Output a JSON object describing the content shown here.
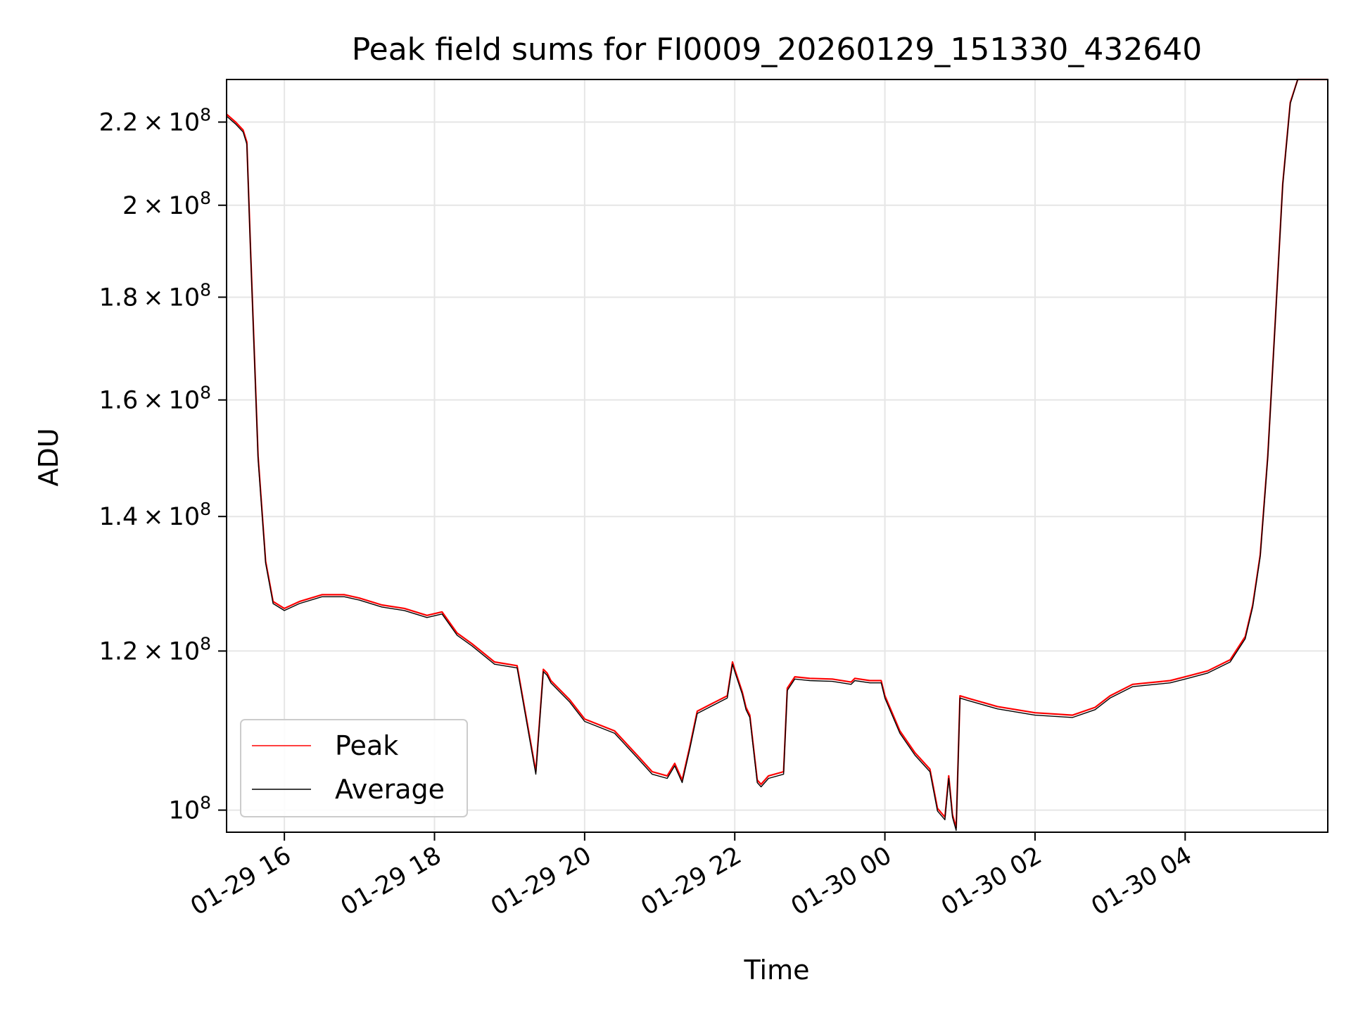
{
  "chart_data": {
    "type": "line",
    "title": "Peak field sums for FI0009_20260129_151330_432640",
    "xlabel": "Time",
    "ylabel": "ADU",
    "yscale": "log",
    "ylim": [
      97500000,
      231000000
    ],
    "x_ticks": [
      "01-29 16",
      "01-29 18",
      "01-29 20",
      "01-29 22",
      "01-30 00",
      "01-30 02",
      "01-30 04"
    ],
    "x_tick_hours": [
      16,
      18,
      20,
      22,
      24,
      26,
      28
    ],
    "xlim_hours": [
      15.23,
      29.9
    ],
    "y_ticks": [
      {
        "mantissa": "2.2",
        "exp": "8",
        "value": 220000000
      },
      {
        "mantissa": "2",
        "exp": "8",
        "value": 200000000
      },
      {
        "mantissa": "1.8",
        "exp": "8",
        "value": 180000000
      },
      {
        "mantissa": "1.6",
        "exp": "8",
        "value": 160000000
      },
      {
        "mantissa": "1.4",
        "exp": "8",
        "value": 140000000
      },
      {
        "mantissa": "1.2",
        "exp": "8",
        "value": 120000000
      },
      {
        "mantissa": "",
        "exp": "8",
        "value": 100000000
      }
    ],
    "grid": true,
    "legend_position": "lower-left",
    "series": [
      {
        "name": "Peak",
        "color": "#ff0000",
        "x_hours": [
          15.23,
          15.35,
          15.45,
          15.5,
          15.55,
          15.65,
          15.75,
          15.85,
          16.0,
          16.2,
          16.5,
          16.8,
          17.0,
          17.3,
          17.6,
          17.9,
          18.1,
          18.3,
          18.5,
          18.8,
          19.1,
          19.35,
          19.45,
          19.5,
          19.55,
          19.8,
          20.0,
          20.4,
          20.7,
          20.9,
          21.1,
          21.2,
          21.3,
          21.4,
          21.5,
          21.7,
          21.9,
          21.97,
          22.0,
          22.1,
          22.15,
          22.2,
          22.3,
          22.35,
          22.45,
          22.65,
          22.7,
          22.8,
          23.0,
          23.3,
          23.55,
          23.6,
          23.8,
          23.95,
          24.0,
          24.2,
          24.4,
          24.6,
          24.7,
          24.8,
          24.85,
          24.9,
          24.95,
          25.0,
          25.1,
          25.5,
          26.0,
          26.5,
          26.8,
          27.0,
          27.3,
          27.8,
          28.0,
          28.3,
          28.6,
          28.8,
          28.9,
          29.0,
          29.1,
          29.2,
          29.3,
          29.4,
          29.5,
          29.9
        ],
        "values": [
          222000000,
          220000000,
          218000000,
          215000000,
          190000000,
          150000000,
          133000000,
          127000000,
          126000000,
          127000000,
          128000000,
          128000000,
          127500000,
          126500000,
          126000000,
          125000000,
          125500000,
          122500000,
          121000000,
          118500000,
          118000000,
          104500000,
          117500000,
          117000000,
          116000000,
          113500000,
          111000000,
          109500000,
          106500000,
          104500000,
          104000000,
          105500000,
          103500000,
          107500000,
          112000000,
          113000000,
          114000000,
          118500000,
          117500000,
          114500000,
          112500000,
          111500000,
          103500000,
          103000000,
          104000000,
          104500000,
          115000000,
          116500000,
          116300000,
          116200000,
          115800000,
          116300000,
          116000000,
          116000000,
          114000000,
          109500000,
          106800000,
          104800000,
          100200000,
          99200000,
          104000000,
          99500000,
          98000000,
          114000000,
          113700000,
          112600000,
          111800000,
          111500000,
          112500000,
          114000000,
          115500000,
          116000000,
          116500000,
          117300000,
          118800000,
          122000000,
          126500000,
          134000000,
          150000000,
          175000000,
          205000000,
          225000000,
          232000000,
          232000000
        ]
      },
      {
        "name": "Average",
        "color": "#000000",
        "x_hours": [
          15.23,
          15.35,
          15.45,
          15.5,
          15.55,
          15.65,
          15.75,
          15.85,
          16.0,
          16.2,
          16.5,
          16.8,
          17.0,
          17.3,
          17.6,
          17.9,
          18.1,
          18.3,
          18.5,
          18.8,
          19.1,
          19.35,
          19.45,
          19.5,
          19.55,
          19.8,
          20.0,
          20.4,
          20.7,
          20.9,
          21.1,
          21.2,
          21.3,
          21.4,
          21.5,
          21.7,
          21.9,
          21.97,
          22.0,
          22.1,
          22.15,
          22.2,
          22.3,
          22.35,
          22.45,
          22.65,
          22.7,
          22.8,
          23.0,
          23.3,
          23.55,
          23.6,
          23.8,
          23.95,
          24.0,
          24.2,
          24.4,
          24.6,
          24.7,
          24.8,
          24.85,
          24.9,
          24.95,
          25.0,
          25.1,
          25.5,
          26.0,
          26.5,
          26.8,
          27.0,
          27.3,
          27.8,
          28.0,
          28.3,
          28.6,
          28.8,
          28.9,
          29.0,
          29.1,
          29.2,
          29.3,
          29.4,
          29.5,
          29.9
        ],
        "values": [
          221500000,
          219500000,
          217500000,
          214500000,
          189500000,
          149500000,
          132700000,
          126700000,
          125700000,
          126700000,
          127700000,
          127700000,
          127200000,
          126200000,
          125700000,
          124700000,
          125200000,
          122200000,
          120700000,
          118200000,
          117700000,
          104200000,
          117200000,
          116700000,
          115700000,
          113200000,
          110700000,
          109200000,
          106200000,
          104200000,
          103700000,
          105200000,
          103200000,
          107200000,
          111700000,
          112700000,
          113700000,
          118200000,
          117200000,
          114200000,
          112200000,
          111200000,
          103200000,
          102700000,
          103700000,
          104200000,
          114700000,
          116200000,
          116000000,
          115900000,
          115500000,
          116000000,
          115700000,
          115700000,
          113700000,
          109200000,
          106500000,
          104500000,
          99900000,
          98900000,
          103700000,
          99200000,
          97700000,
          113700000,
          113400000,
          112300000,
          111500000,
          111200000,
          112200000,
          113700000,
          115200000,
          115700000,
          116200000,
          117000000,
          118500000,
          121700000,
          126200000,
          133700000,
          149700000,
          174700000,
          204700000,
          224700000,
          232000000,
          232000000
        ]
      }
    ]
  }
}
